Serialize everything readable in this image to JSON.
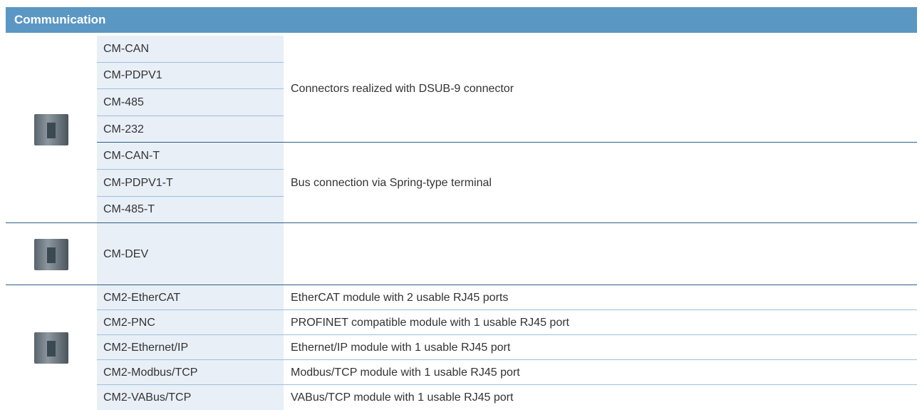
{
  "header": {
    "title": "Communication"
  },
  "sections": [
    {
      "groups": [
        {
          "names": [
            "CM-CAN",
            "CM-PDPV1",
            "CM-485",
            "CM-232"
          ],
          "description": "Connectors realized with DSUB-9 connector"
        },
        {
          "names": [
            "CM-CAN-T",
            "CM-PDPV1-T",
            "CM-485-T"
          ],
          "description": "Bus connection via Spring-type terminal"
        }
      ]
    },
    {
      "groups": [
        {
          "names": [
            "CM-DEV"
          ]
        }
      ]
    },
    {
      "rows": [
        {
          "name": "CM2-EtherCAT",
          "description": "EtherCAT module with 2 usable RJ45 ports"
        },
        {
          "name": "CM2-PNC",
          "description": "PROFINET compatible module with 1 usable RJ45 port"
        },
        {
          "name": "CM2-Ethernet/IP",
          "description": "Ethernet/IP module with 1 usable RJ45 port"
        },
        {
          "name": "CM2-Modbus/TCP",
          "description": "Modbus/TCP module with 1 usable RJ45 port"
        },
        {
          "name": "CM2-VABus/TCP",
          "description": "VABus/TCP module with 1 usable RJ45 port"
        }
      ]
    }
  ]
}
